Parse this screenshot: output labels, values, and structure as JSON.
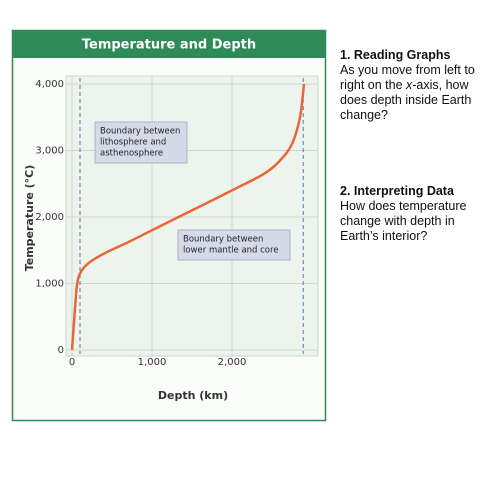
{
  "chart_data": {
    "type": "line",
    "title": "Temperature and Depth",
    "x_label": "Depth (km)",
    "y_label": "Temperature (°C)",
    "x": [
      0,
      30,
      60,
      100,
      200,
      400,
      700,
      1000,
      1500,
      2000,
      2400,
      2600,
      2750,
      2850,
      2900
    ],
    "series": [
      {
        "color": "#e8663a",
        "values": [
          0,
          500,
          950,
          1150,
          1300,
          1450,
          1620,
          1800,
          2100,
          2400,
          2650,
          2850,
          3100,
          3500,
          4000
        ]
      }
    ],
    "xlim": [
      0,
      3000
    ],
    "ylim": [
      0,
      4000
    ],
    "xticks": [
      0,
      {
        "value": 1000,
        "label": "1,000"
      },
      {
        "value": 2000,
        "label": "2,000"
      }
    ],
    "yticks": [
      0,
      {
        "value": 1000,
        "label": "1,000"
      },
      {
        "value": 2000,
        "label": "2,000"
      },
      {
        "value": 3000,
        "label": "3,000"
      },
      {
        "value": 4000,
        "label": "4,000"
      }
    ],
    "grid": true,
    "boundaries": [
      {
        "x": 100,
        "label": [
          "Boundary between",
          "lithosphere and",
          "asthenosphere"
        ]
      },
      {
        "x": 2890,
        "label": [
          "Boundary between",
          "lower mantle and core"
        ]
      }
    ]
  },
  "questions": [
    {
      "heading": "1. Reading Graphs",
      "body": [
        "As you move from left to right on the ",
        "x",
        "-axis, how does depth inside Earth change?"
      ]
    },
    {
      "heading": "2. Interpreting Data",
      "body": [
        "How does temperature change with depth in Earth’s interior?"
      ]
    }
  ]
}
